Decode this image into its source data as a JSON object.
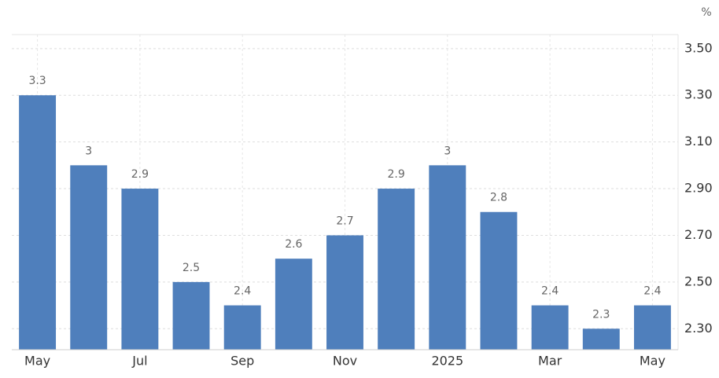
{
  "chart_data": {
    "type": "bar",
    "unit": "%",
    "categories": [
      "May",
      null,
      "Jul",
      null,
      "Sep",
      null,
      "Nov",
      null,
      "2025",
      null,
      "Mar",
      null,
      "May"
    ],
    "values": [
      3.3,
      3,
      2.9,
      2.5,
      2.4,
      2.6,
      2.7,
      2.9,
      3,
      2.8,
      2.4,
      2.3,
      2.4
    ],
    "color": "#4f7fbc",
    "ylim": [
      2.21,
      3.56
    ],
    "yticks": [
      {
        "value": 2.3,
        "label": "2.30"
      },
      {
        "value": 2.5,
        "label": "2.50"
      },
      {
        "value": 2.7,
        "label": "2.70"
      },
      {
        "value": 2.9,
        "label": "2.90"
      },
      {
        "value": 3.1,
        "label": "3.10"
      },
      {
        "value": 3.3,
        "label": "3.30"
      },
      {
        "value": 3.5,
        "label": "3.50"
      }
    ],
    "grid": true,
    "yaxis_side": "right"
  }
}
